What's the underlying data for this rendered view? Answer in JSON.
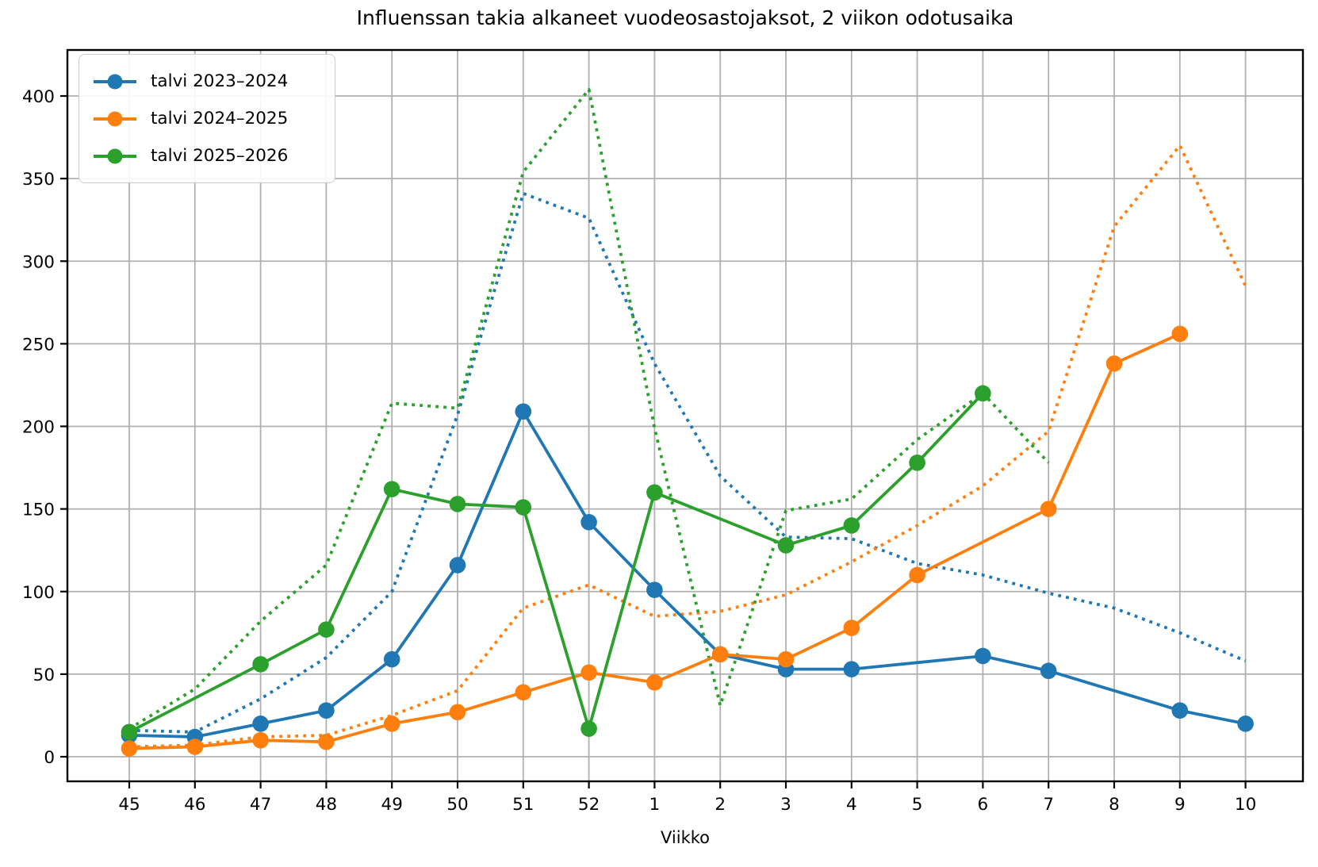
{
  "figure": {
    "background": "#ffffff",
    "grid_color": "#b0b0b0",
    "spine_color": "#000000"
  },
  "chart_data": {
    "type": "line",
    "title": "Influenssan takia alkaneet vuodeosastojaksot, 2 viikon odotusaika",
    "xlabel": "Viikko",
    "ylabel": "",
    "categories": [
      "45",
      "46",
      "47",
      "48",
      "49",
      "50",
      "51",
      "52",
      "1",
      "2",
      "3",
      "4",
      "5",
      "6",
      "7",
      "8",
      "9",
      "10"
    ],
    "yticks": [
      0,
      50,
      100,
      150,
      200,
      250,
      300,
      350,
      400
    ],
    "ylim": [
      -15,
      428
    ],
    "grid": true,
    "legend_position": "upper left",
    "series": [
      {
        "name": "talvi 2023–2024",
        "color": "#1f77b4",
        "linestyle": "solid",
        "has_markers": true,
        "in_legend": true,
        "points": [
          [
            "45",
            13
          ],
          [
            "46",
            12
          ],
          [
            "47",
            20
          ],
          [
            "48",
            28
          ],
          [
            "49",
            59
          ],
          [
            "50",
            116
          ],
          [
            "51",
            209
          ],
          [
            "52",
            142
          ],
          [
            "1",
            101
          ],
          [
            "2",
            62
          ],
          [
            "3",
            53
          ],
          [
            "4",
            53
          ],
          [
            "6",
            61
          ],
          [
            "7",
            52
          ],
          [
            "9",
            28
          ],
          [
            "10",
            20
          ]
        ]
      },
      {
        "name": "talvi 2024–2025",
        "color": "#ff7f0e",
        "linestyle": "solid",
        "has_markers": true,
        "in_legend": true,
        "points": [
          [
            "45",
            5
          ],
          [
            "46",
            6
          ],
          [
            "47",
            10
          ],
          [
            "48",
            9
          ],
          [
            "49",
            20
          ],
          [
            "50",
            27
          ],
          [
            "51",
            39
          ],
          [
            "52",
            51
          ],
          [
            "1",
            45
          ],
          [
            "2",
            62
          ],
          [
            "3",
            59
          ],
          [
            "4",
            78
          ],
          [
            "5",
            110
          ],
          [
            "7",
            150
          ],
          [
            "8",
            238
          ],
          [
            "9",
            256
          ]
        ]
      },
      {
        "name": "talvi 2025–2026",
        "color": "#2ca02c",
        "linestyle": "solid",
        "has_markers": true,
        "in_legend": true,
        "points": [
          [
            "45",
            15
          ],
          [
            "47",
            56
          ],
          [
            "48",
            77
          ],
          [
            "49",
            162
          ],
          [
            "50",
            153
          ],
          [
            "51",
            151
          ],
          [
            "52",
            17
          ],
          [
            "1",
            160
          ],
          [
            "3",
            128
          ],
          [
            "4",
            140
          ],
          [
            "5",
            178
          ],
          [
            "6",
            220
          ]
        ]
      },
      {
        "name": "talvi 2023–2024 dotted",
        "color": "#1f77b4",
        "linestyle": "dotted",
        "has_markers": false,
        "in_legend": false,
        "points": [
          [
            "45",
            16
          ],
          [
            "46",
            15
          ],
          [
            "47",
            35
          ],
          [
            "48",
            60
          ],
          [
            "49",
            100
          ],
          [
            "50",
            207
          ],
          [
            "51",
            341
          ],
          [
            "52",
            326
          ],
          [
            "1",
            238
          ],
          [
            "2",
            170
          ],
          [
            "3",
            133
          ],
          [
            "4",
            132
          ],
          [
            "5",
            117
          ],
          [
            "6",
            110
          ],
          [
            "7",
            99
          ],
          [
            "8",
            90
          ],
          [
            "9",
            75
          ],
          [
            "10",
            58
          ]
        ]
      },
      {
        "name": "talvi 2024–2025 dotted",
        "color": "#ff7f0e",
        "linestyle": "dotted",
        "has_markers": false,
        "in_legend": false,
        "points": [
          [
            "45",
            6
          ],
          [
            "46",
            7
          ],
          [
            "47",
            12
          ],
          [
            "48",
            13
          ],
          [
            "49",
            25
          ],
          [
            "50",
            40
          ],
          [
            "51",
            90
          ],
          [
            "52",
            104
          ],
          [
            "1",
            85
          ],
          [
            "2",
            88
          ],
          [
            "3",
            98
          ],
          [
            "4",
            118
          ],
          [
            "5",
            140
          ],
          [
            "6",
            164
          ],
          [
            "7",
            197
          ],
          [
            "8",
            321
          ],
          [
            "9",
            370
          ],
          [
            "10",
            285
          ]
        ]
      },
      {
        "name": "talvi 2025–2026 dotted",
        "color": "#2ca02c",
        "linestyle": "dotted",
        "has_markers": false,
        "in_legend": false,
        "points": [
          [
            "45",
            17
          ],
          [
            "46",
            41
          ],
          [
            "47",
            82
          ],
          [
            "48",
            116
          ],
          [
            "49",
            214
          ],
          [
            "50",
            211
          ],
          [
            "51",
            354
          ],
          [
            "52",
            404
          ],
          [
            "1",
            199
          ],
          [
            "2",
            31
          ],
          [
            "3",
            149
          ],
          [
            "4",
            156
          ],
          [
            "5",
            192
          ],
          [
            "6",
            220
          ],
          [
            "7",
            178
          ]
        ]
      }
    ]
  },
  "legend": {
    "items": [
      {
        "label": "talvi 2023–2024"
      },
      {
        "label": "talvi 2024–2025"
      },
      {
        "label": "talvi 2025–2026"
      }
    ]
  }
}
